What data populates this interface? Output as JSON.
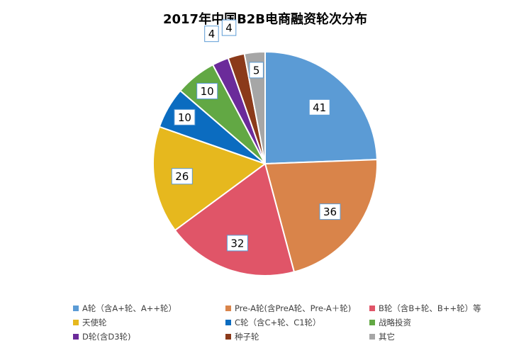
{
  "chart_data": {
    "type": "pie",
    "title": "2017年中国B2B电商融资轮次分布",
    "categories": [
      "A轮（含A+轮、A++轮）",
      "Pre-A轮(含PreA轮、Pre-A＋轮)",
      "B轮（含B+轮、B++轮）等",
      "天使轮",
      "C轮（含C+轮、C1轮）",
      "战略投资",
      "D轮(含D3轮)",
      "种子轮",
      "其它"
    ],
    "values": [
      41,
      36,
      32,
      26,
      10,
      10,
      4,
      4,
      5
    ],
    "colors": [
      "#5b9bd5",
      "#d9844a",
      "#e05568",
      "#e6b81e",
      "#0b6cc0",
      "#62a844",
      "#6b2b9a",
      "#8b3a1a",
      "#a6a6a6"
    ],
    "legend_position": "bottom",
    "start_angle": "12 o'clock",
    "direction": "clockwise"
  }
}
